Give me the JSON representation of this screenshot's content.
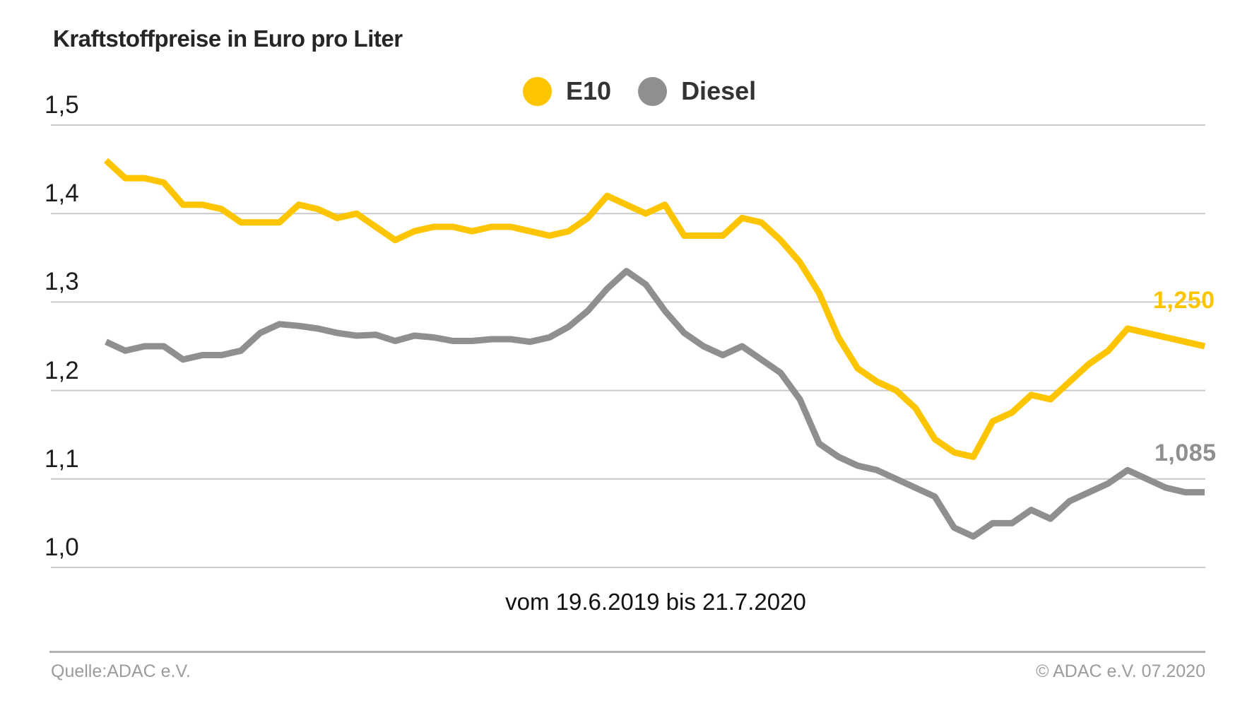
{
  "title": "Kraftstoffpreise in Euro pro Liter",
  "x_axis_label": "vom 19.6.2019 bis 21.7.2020",
  "footer": {
    "source": "Quelle:ADAC e.V.",
    "copyright": "© ADAC e.V. 07.2020"
  },
  "colors": {
    "e10": "#FDC500",
    "diesel": "#8F8F8F",
    "grid": "#C9C9C9",
    "title_text": "#262626",
    "footer_text": "#9C9C9C"
  },
  "chart_data": {
    "type": "line",
    "title": "Kraftstoffpreise in Euro pro Liter",
    "x_range_label": "vom 19.6.2019 bis 21.7.2020",
    "x_start_date": "19.6.2019",
    "x_end_date": "21.7.2020",
    "x_unit": "week",
    "ylabel": "Euro pro Liter",
    "ylim": [
      1.0,
      1.5
    ],
    "grid": true,
    "legend_position": "top-center",
    "y_ticks": [
      {
        "label": "1,5",
        "value": 1.5
      },
      {
        "label": "1,4",
        "value": 1.4
      },
      {
        "label": "1,3",
        "value": 1.3
      },
      {
        "label": "1,2",
        "value": 1.2
      },
      {
        "label": "1,1",
        "value": 1.1
      },
      {
        "label": "1,0",
        "value": 1.0
      }
    ],
    "series": [
      {
        "name": "E10",
        "color": "#FDC500",
        "end_label": "1,250",
        "final_value": 1.25,
        "values": [
          1.46,
          1.44,
          1.44,
          1.435,
          1.41,
          1.41,
          1.405,
          1.39,
          1.39,
          1.39,
          1.41,
          1.405,
          1.395,
          1.4,
          1.385,
          1.37,
          1.38,
          1.385,
          1.385,
          1.38,
          1.385,
          1.385,
          1.38,
          1.375,
          1.38,
          1.395,
          1.42,
          1.41,
          1.4,
          1.41,
          1.375,
          1.375,
          1.375,
          1.395,
          1.39,
          1.37,
          1.345,
          1.31,
          1.26,
          1.225,
          1.21,
          1.2,
          1.18,
          1.145,
          1.13,
          1.125,
          1.165,
          1.175,
          1.195,
          1.19,
          1.21,
          1.23,
          1.245,
          1.27,
          1.265,
          1.26,
          1.255,
          1.25
        ]
      },
      {
        "name": "Diesel",
        "color": "#8F8F8F",
        "end_label": "1,085",
        "final_value": 1.085,
        "values": [
          1.255,
          1.245,
          1.25,
          1.25,
          1.235,
          1.24,
          1.24,
          1.245,
          1.265,
          1.275,
          1.273,
          1.27,
          1.265,
          1.262,
          1.263,
          1.256,
          1.262,
          1.26,
          1.256,
          1.256,
          1.258,
          1.258,
          1.255,
          1.26,
          1.272,
          1.29,
          1.315,
          1.335,
          1.32,
          1.29,
          1.265,
          1.25,
          1.24,
          1.25,
          1.235,
          1.22,
          1.19,
          1.14,
          1.125,
          1.115,
          1.11,
          1.1,
          1.09,
          1.08,
          1.045,
          1.035,
          1.05,
          1.05,
          1.065,
          1.055,
          1.075,
          1.085,
          1.095,
          1.11,
          1.1,
          1.09,
          1.085,
          1.085
        ]
      }
    ]
  }
}
